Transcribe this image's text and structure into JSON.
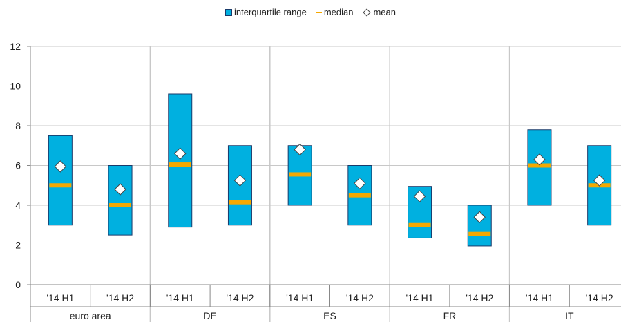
{
  "legend": {
    "iqr": "interquartile range",
    "median": "median",
    "mean": "mean"
  },
  "colors": {
    "box_fill": "#00b0e0",
    "box_stroke": "#1a3a6a",
    "median": "#f5a800",
    "mean_fill": "#ffffff",
    "mean_stroke": "#444444",
    "grid": "#c8c8c8"
  },
  "chart_data": {
    "type": "box",
    "ylim": [
      0,
      12
    ],
    "yticks": [
      0,
      2,
      4,
      6,
      8,
      10,
      12
    ],
    "groups": [
      {
        "label": "euro area",
        "items": [
          {
            "x": "'14 H1",
            "q1": 3.0,
            "q3": 7.5,
            "median": 5.0,
            "mean": 5.95
          },
          {
            "x": "'14 H2",
            "q1": 2.5,
            "q3": 6.0,
            "median": 4.0,
            "mean": 4.8
          }
        ]
      },
      {
        "label": "DE",
        "items": [
          {
            "x": "'14 H1",
            "q1": 2.9,
            "q3": 9.6,
            "median": 6.05,
            "mean": 6.6
          },
          {
            "x": "'14 H2",
            "q1": 3.0,
            "q3": 7.0,
            "median": 4.15,
            "mean": 5.25
          }
        ]
      },
      {
        "label": "ES",
        "items": [
          {
            "x": "'14 H1",
            "q1": 4.0,
            "q3": 7.0,
            "median": 5.55,
            "mean": 6.8
          },
          {
            "x": "'14 H2",
            "q1": 3.0,
            "q3": 6.0,
            "median": 4.5,
            "mean": 5.1
          }
        ]
      },
      {
        "label": "FR",
        "items": [
          {
            "x": "'14 H1",
            "q1": 2.35,
            "q3": 4.95,
            "median": 3.0,
            "mean": 4.45
          },
          {
            "x": "'14 H2",
            "q1": 1.95,
            "q3": 4.0,
            "median": 2.55,
            "mean": 3.4
          }
        ]
      },
      {
        "label": "IT",
        "items": [
          {
            "x": "'14 H1",
            "q1": 4.0,
            "q3": 7.8,
            "median": 6.0,
            "mean": 6.3
          },
          {
            "x": "'14 H2",
            "q1": 3.0,
            "q3": 7.0,
            "median": 5.0,
            "mean": 5.25
          }
        ]
      }
    ]
  }
}
